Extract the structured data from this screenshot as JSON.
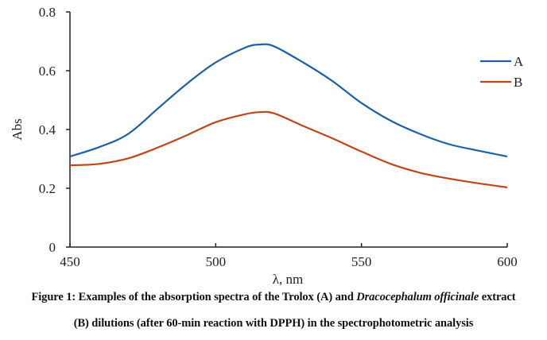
{
  "chart_data": {
    "type": "line",
    "title": "",
    "xlabel": "λ, nm",
    "ylabel": "Abs",
    "xlim": [
      450,
      600
    ],
    "ylim": [
      0,
      0.8
    ],
    "xticks": [
      450,
      500,
      550,
      600
    ],
    "xtick_labels": [
      "450",
      "500",
      "550",
      "600"
    ],
    "yticks": [
      0,
      0.2,
      0.4,
      0.6,
      0.8
    ],
    "ytick_labels": [
      "0",
      "0.2",
      "0.4",
      "0.6",
      "0.8"
    ],
    "grid": false,
    "legend_position": "top-right",
    "x": [
      450,
      460,
      470,
      480,
      490,
      500,
      510,
      515,
      520,
      530,
      540,
      550,
      560,
      570,
      580,
      590,
      600
    ],
    "series": [
      {
        "name": "A",
        "color": "#1f5fa6",
        "values": [
          0.308,
          0.34,
          0.385,
          0.47,
          0.555,
          0.628,
          0.678,
          0.689,
          0.683,
          0.628,
          0.565,
          0.49,
          0.43,
          0.385,
          0.35,
          0.328,
          0.308
        ]
      },
      {
        "name": "B",
        "color": "#c0461a",
        "values": [
          0.278,
          0.283,
          0.302,
          0.338,
          0.38,
          0.425,
          0.452,
          0.459,
          0.455,
          0.412,
          0.37,
          0.325,
          0.283,
          0.253,
          0.233,
          0.217,
          0.203
        ]
      }
    ]
  },
  "caption": {
    "line1_prefix": "Figure 1: Examples of the absorption spectra of the Trolox (A) and ",
    "line1_italic": "Dracocephalum officinale",
    "line1_suffix": " extract",
    "line2": "(B) dilutions (after 60-min reaction with DPPH) in the spectrophotometric analysis"
  }
}
